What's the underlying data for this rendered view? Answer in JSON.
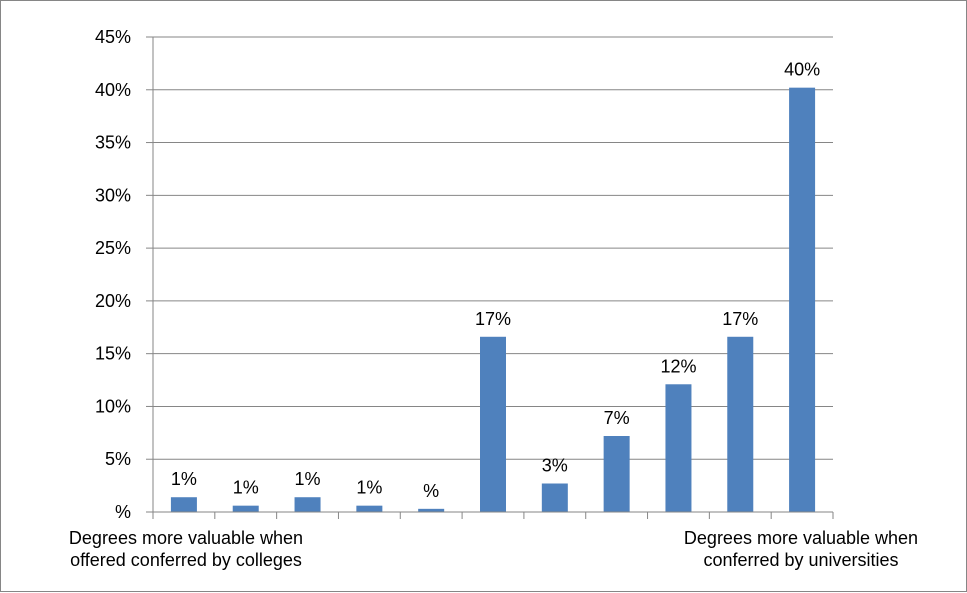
{
  "chart_data": {
    "type": "bar",
    "title": "",
    "xlabel": "",
    "ylabel": "",
    "ylim": [
      0,
      45
    ],
    "yticks": [
      {
        "value": 0,
        "label": "%"
      },
      {
        "value": 5,
        "label": "5%"
      },
      {
        "value": 10,
        "label": "10%"
      },
      {
        "value": 15,
        "label": "15%"
      },
      {
        "value": 20,
        "label": "20%"
      },
      {
        "value": 25,
        "label": "25%"
      },
      {
        "value": 30,
        "label": "30%"
      },
      {
        "value": 35,
        "label": "35%"
      },
      {
        "value": 40,
        "label": "40%"
      },
      {
        "value": 45,
        "label": "45%"
      }
    ],
    "grid": true,
    "legend": "none",
    "bar_color": "#4F81BD",
    "categories": [
      "",
      "",
      "",
      "",
      "",
      "",
      "",
      "",
      "",
      "",
      ""
    ],
    "values": [
      1.4,
      0.6,
      1.4,
      0.6,
      0.3,
      16.6,
      2.7,
      7.2,
      12.1,
      16.6,
      40.2
    ],
    "data_labels": [
      "1%",
      "1%",
      "1%",
      "1%",
      "%",
      "17%",
      "3%",
      "7%",
      "12%",
      "17%",
      "40%"
    ],
    "left_caption": [
      "Degrees more valuable when",
      "offered conferred by colleges"
    ],
    "right_caption": [
      "Degrees more valuable when",
      "conferred by universities"
    ]
  }
}
